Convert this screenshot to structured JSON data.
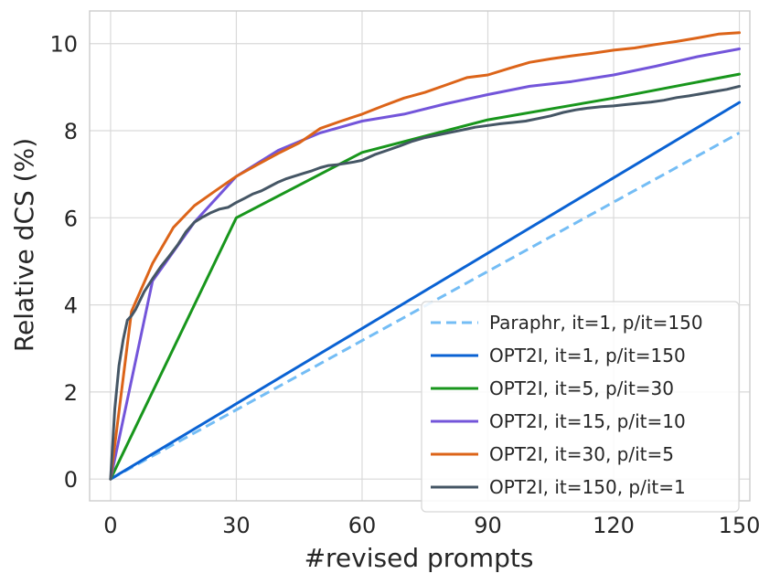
{
  "chart_data": {
    "type": "line",
    "title": "",
    "xlabel": "#revised prompts",
    "ylabel": "Relative dCS (%)",
    "xlim": [
      -5,
      152.5
    ],
    "ylim": [
      -0.5,
      10.75
    ],
    "xticks": [
      "0",
      "30",
      "60",
      "90",
      "120",
      "150"
    ],
    "yticks": [
      "0",
      "2",
      "4",
      "6",
      "8",
      "10"
    ],
    "grid": true,
    "legend_position": "lower-right",
    "series": [
      {
        "name": "Paraphr, it=1, p/it=150",
        "color": "#74bdf5",
        "dash": "dashed",
        "x": [
          0,
          150
        ],
        "y": [
          0,
          7.95
        ]
      },
      {
        "name": "OPT2I, it=1, p/it=150",
        "color": "#0a62d3",
        "dash": "solid",
        "x": [
          0,
          150
        ],
        "y": [
          0,
          8.65
        ]
      },
      {
        "name": "OPT2I, it=5, p/it=30",
        "color": "#18961c",
        "dash": "solid",
        "x": [
          0,
          30,
          60,
          90,
          120,
          150
        ],
        "y": [
          0,
          6.0,
          7.5,
          8.25,
          8.75,
          9.3
        ]
      },
      {
        "name": "OPT2I, it=15, p/it=10",
        "color": "#7355da",
        "dash": "solid",
        "x": [
          0,
          10,
          20,
          30,
          40,
          50,
          60,
          70,
          80,
          90,
          100,
          110,
          120,
          130,
          140,
          150
        ],
        "y": [
          0,
          4.55,
          5.9,
          6.95,
          7.55,
          7.95,
          8.22,
          8.38,
          8.62,
          8.83,
          9.02,
          9.13,
          9.28,
          9.48,
          9.7,
          9.88
        ]
      },
      {
        "name": "OPT2I, it=30, p/it=5",
        "color": "#dc6419",
        "dash": "solid",
        "x": [
          0,
          5,
          10,
          15,
          20,
          25,
          30,
          35,
          40,
          45,
          50,
          55,
          60,
          65,
          70,
          75,
          80,
          85,
          90,
          95,
          100,
          105,
          110,
          115,
          120,
          125,
          130,
          135,
          140,
          145,
          150
        ],
        "y": [
          0,
          3.85,
          4.95,
          5.78,
          6.28,
          6.62,
          6.95,
          7.22,
          7.48,
          7.72,
          8.05,
          8.22,
          8.38,
          8.57,
          8.75,
          8.88,
          9.05,
          9.22,
          9.28,
          9.43,
          9.57,
          9.65,
          9.72,
          9.78,
          9.85,
          9.9,
          9.98,
          10.05,
          10.13,
          10.22,
          10.25
        ]
      },
      {
        "name": "OPT2I, it=150, p/it=1",
        "color": "#455665",
        "dash": "solid",
        "x": [
          0,
          1,
          2,
          3,
          4,
          5,
          6,
          8,
          10,
          12,
          14,
          16,
          18,
          20,
          22,
          24,
          26,
          28,
          30,
          32,
          34,
          36,
          38,
          40,
          42,
          44,
          46,
          48,
          50,
          52,
          54,
          56,
          58,
          60,
          63,
          66,
          69,
          72,
          75,
          78,
          81,
          84,
          87,
          90,
          93,
          96,
          99,
          102,
          105,
          108,
          111,
          114,
          117,
          120,
          123,
          126,
          129,
          132,
          135,
          138,
          141,
          144,
          147,
          150
        ],
        "y": [
          0,
          1.6,
          2.6,
          3.2,
          3.65,
          3.75,
          3.9,
          4.3,
          4.6,
          4.88,
          5.12,
          5.38,
          5.68,
          5.9,
          6.02,
          6.12,
          6.2,
          6.24,
          6.35,
          6.45,
          6.55,
          6.62,
          6.72,
          6.82,
          6.9,
          6.96,
          7.02,
          7.08,
          7.15,
          7.2,
          7.22,
          7.25,
          7.28,
          7.32,
          7.45,
          7.55,
          7.65,
          7.76,
          7.84,
          7.9,
          7.96,
          8.02,
          8.08,
          8.12,
          8.16,
          8.19,
          8.22,
          8.28,
          8.34,
          8.42,
          8.48,
          8.52,
          8.55,
          8.57,
          8.6,
          8.63,
          8.66,
          8.7,
          8.76,
          8.8,
          8.85,
          8.9,
          8.95,
          9.02
        ]
      }
    ]
  }
}
